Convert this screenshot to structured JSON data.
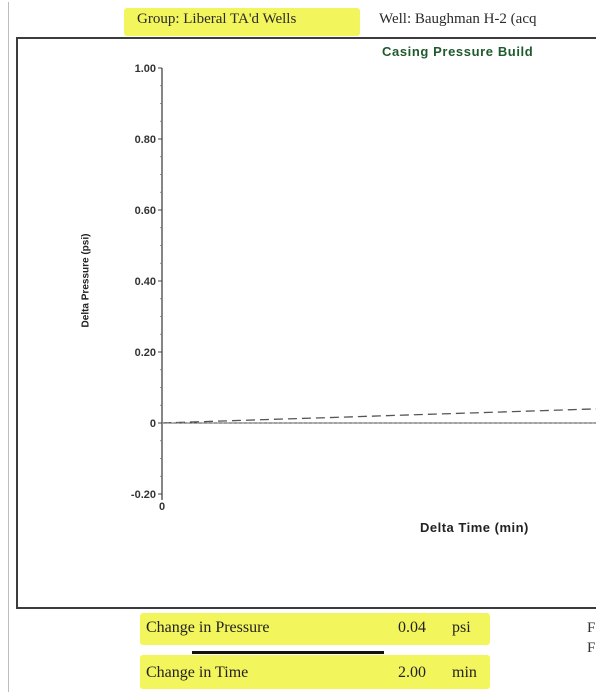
{
  "header": {
    "group_label": "Group: Liberal TA'd Wells",
    "well_label": "Well: Baughman H-2 (acq"
  },
  "chart_data": {
    "type": "line",
    "title": "Casing Pressure Build",
    "xlabel": "Delta Time (min)",
    "ylabel": "Delta Pressure (psi)",
    "ylim": [
      -0.2,
      1.0
    ],
    "y_ticks": [
      "1.00",
      "0.80",
      "0.60",
      "0.40",
      "0.20",
      "0",
      "-0.20"
    ],
    "y_tick_values": [
      1.0,
      0.8,
      0.6,
      0.4,
      0.2,
      0,
      -0.2
    ],
    "x_ticks": [
      "0"
    ],
    "x_tick_values": [
      0
    ],
    "series": [
      {
        "style": "dashed",
        "x": [
          0,
          0.25,
          0.5,
          0.75,
          1.0,
          1.25,
          1.5,
          1.75,
          2.0
        ],
        "values": [
          0,
          0.005,
          0.01,
          0.015,
          0.02,
          0.025,
          0.03,
          0.035,
          0.04
        ]
      },
      {
        "style": "dotted",
        "x": [
          0,
          2.0
        ],
        "values": [
          0,
          0
        ]
      }
    ],
    "grid": false,
    "highlight_color": "#f3f55c"
  },
  "summary": {
    "pressure_label": "Change in Pressure",
    "pressure_value": "0.04",
    "pressure_unit": "psi",
    "time_label": "Change in Time",
    "time_value": "2.00",
    "time_unit": "min",
    "right_edge_1": "F",
    "right_edge_2": "F"
  }
}
